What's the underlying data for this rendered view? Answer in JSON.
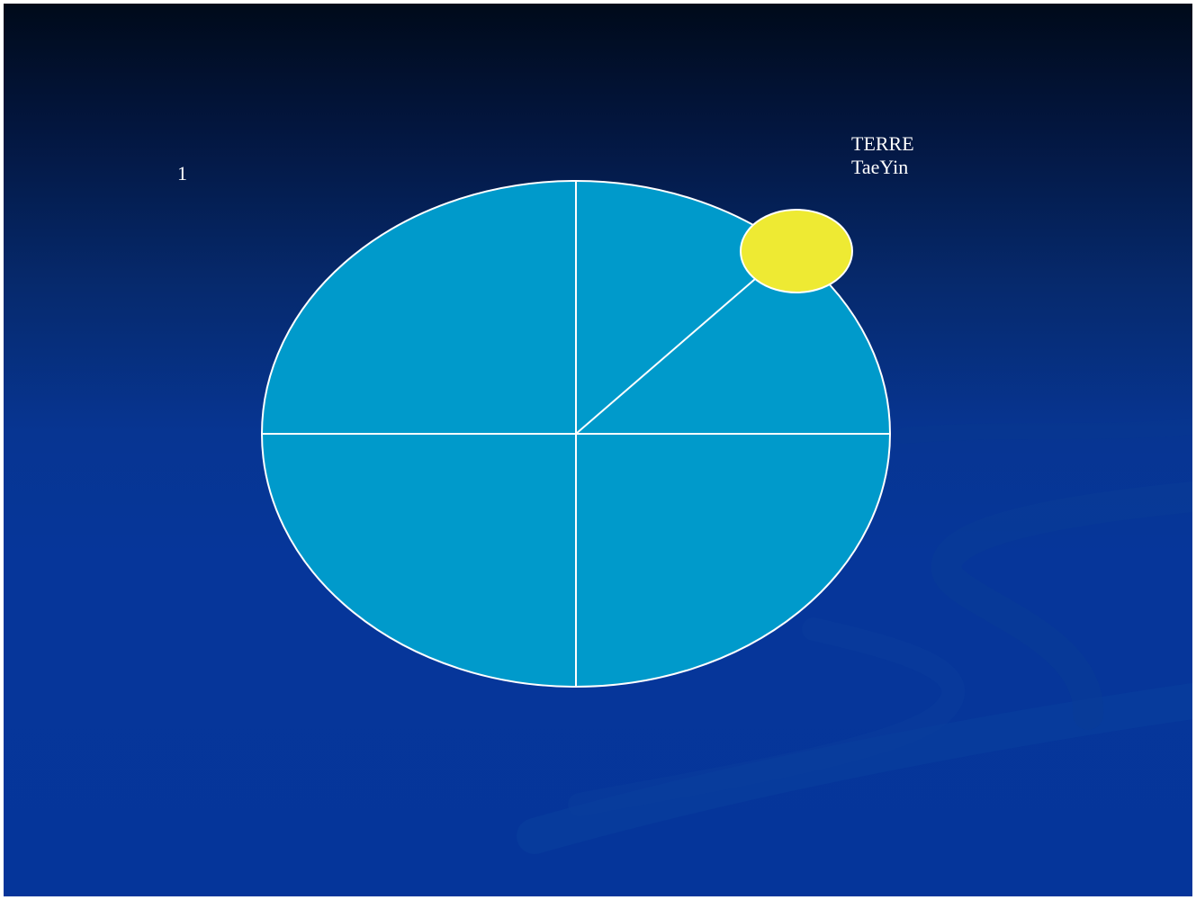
{
  "slide": {
    "number": "1"
  },
  "planet": {
    "name": "TERRE",
    "subtitle": "TaeYin"
  },
  "colors": {
    "background_top": "#000a1a",
    "background_bottom": "#05359a",
    "circle_fill": "#009acb",
    "planet_fill": "#eeea33",
    "lines": "#ffffff"
  }
}
